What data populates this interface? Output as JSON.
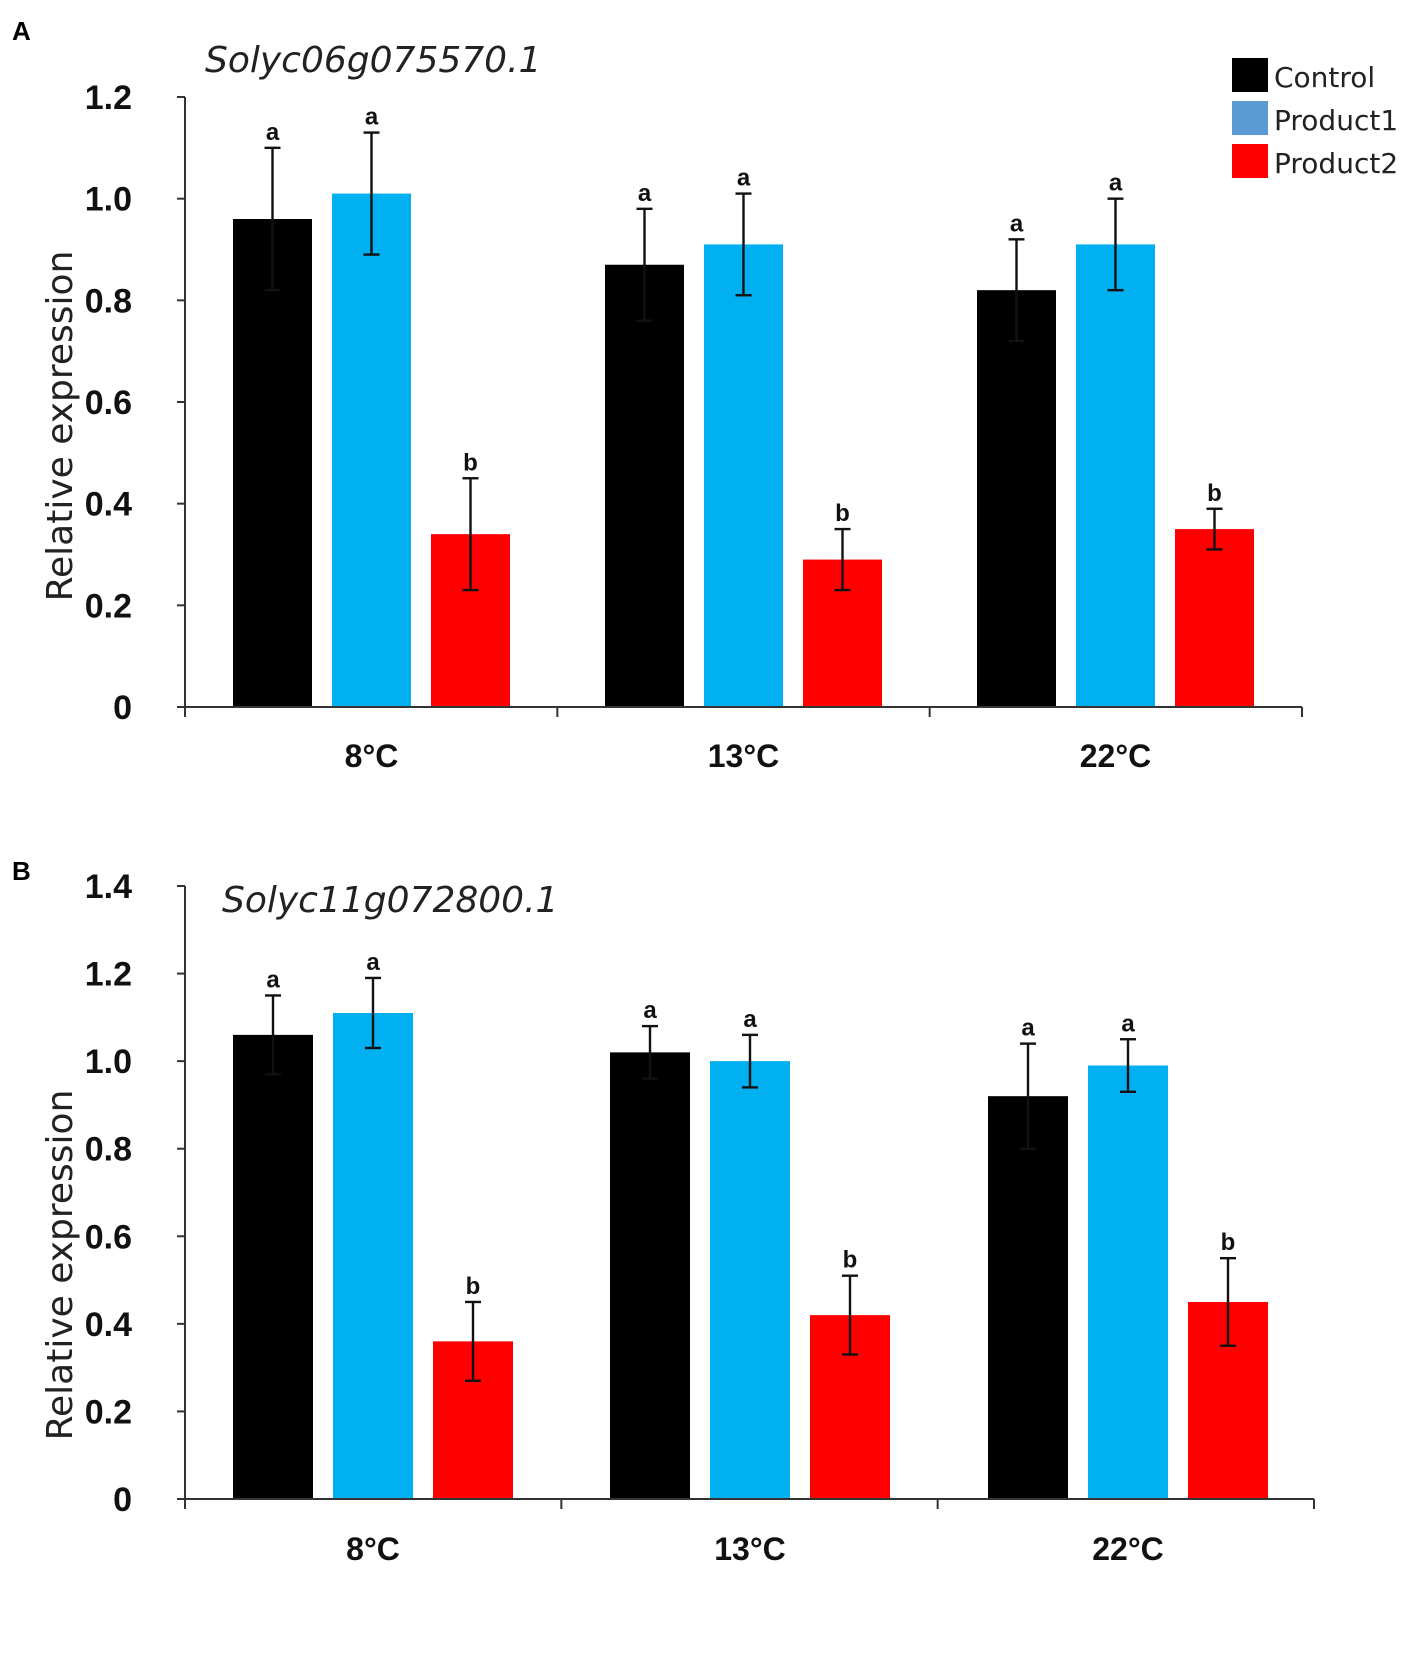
{
  "colors": {
    "control": "#000000",
    "product1": "#00b0f0",
    "product2": "#ff0000",
    "legend_product1": "#5b9bd5"
  },
  "legend": {
    "items": [
      {
        "label": "Control",
        "color": "#000000"
      },
      {
        "label": "Product1",
        "color": "#5b9bd5"
      },
      {
        "label": "Product2",
        "color": "#ff0000"
      }
    ]
  },
  "chart_data": [
    {
      "type": "bar",
      "panel": "A",
      "title": "Solyc06g075570.1",
      "ylabel": "Relative expression",
      "xlabel": "",
      "ylim": [
        0,
        1.2
      ],
      "yticks": [
        0,
        0.2,
        0.4,
        0.6,
        0.8,
        1.0,
        1.2
      ],
      "ytick_labels": [
        "0",
        "0.2",
        "0.4",
        "0.6",
        "0.8",
        "1.0",
        "1.2"
      ],
      "categories": [
        "8°C",
        "13°C",
        "22°C"
      ],
      "series": [
        {
          "name": "Control",
          "values": [
            0.96,
            0.87,
            0.82
          ],
          "errors": [
            0.14,
            0.11,
            0.1
          ],
          "letters": [
            "a",
            "a",
            "a"
          ]
        },
        {
          "name": "Product1",
          "values": [
            1.01,
            0.91,
            0.91
          ],
          "errors": [
            0.12,
            0.1,
            0.09
          ],
          "letters": [
            "a",
            "a",
            "a"
          ]
        },
        {
          "name": "Product2",
          "values": [
            0.34,
            0.29,
            0.35
          ],
          "errors": [
            0.11,
            0.06,
            0.04
          ],
          "letters": [
            "b",
            "b",
            "b"
          ]
        }
      ]
    },
    {
      "type": "bar",
      "panel": "B",
      "title": "Solyc11g072800.1",
      "ylabel": "Relative expression",
      "xlabel": "",
      "ylim": [
        0,
        1.4
      ],
      "yticks": [
        0,
        0.2,
        0.4,
        0.6,
        0.8,
        1.0,
        1.2,
        1.4
      ],
      "ytick_labels": [
        "0",
        "0.2",
        "0.4",
        "0.6",
        "0.8",
        "1.0",
        "1.2",
        "1.4"
      ],
      "categories": [
        "8°C",
        "13°C",
        "22°C"
      ],
      "series": [
        {
          "name": "Control",
          "values": [
            1.06,
            1.02,
            0.92
          ],
          "errors": [
            0.09,
            0.06,
            0.12
          ],
          "letters": [
            "a",
            "a",
            "a"
          ]
        },
        {
          "name": "Product1",
          "values": [
            1.11,
            1.0,
            0.99
          ],
          "errors": [
            0.08,
            0.06,
            0.06
          ],
          "letters": [
            "a",
            "a",
            "a"
          ]
        },
        {
          "name": "Product2",
          "values": [
            0.36,
            0.42,
            0.45
          ],
          "errors": [
            0.09,
            0.09,
            0.1
          ],
          "letters": [
            "b",
            "b",
            "b"
          ]
        }
      ]
    }
  ]
}
